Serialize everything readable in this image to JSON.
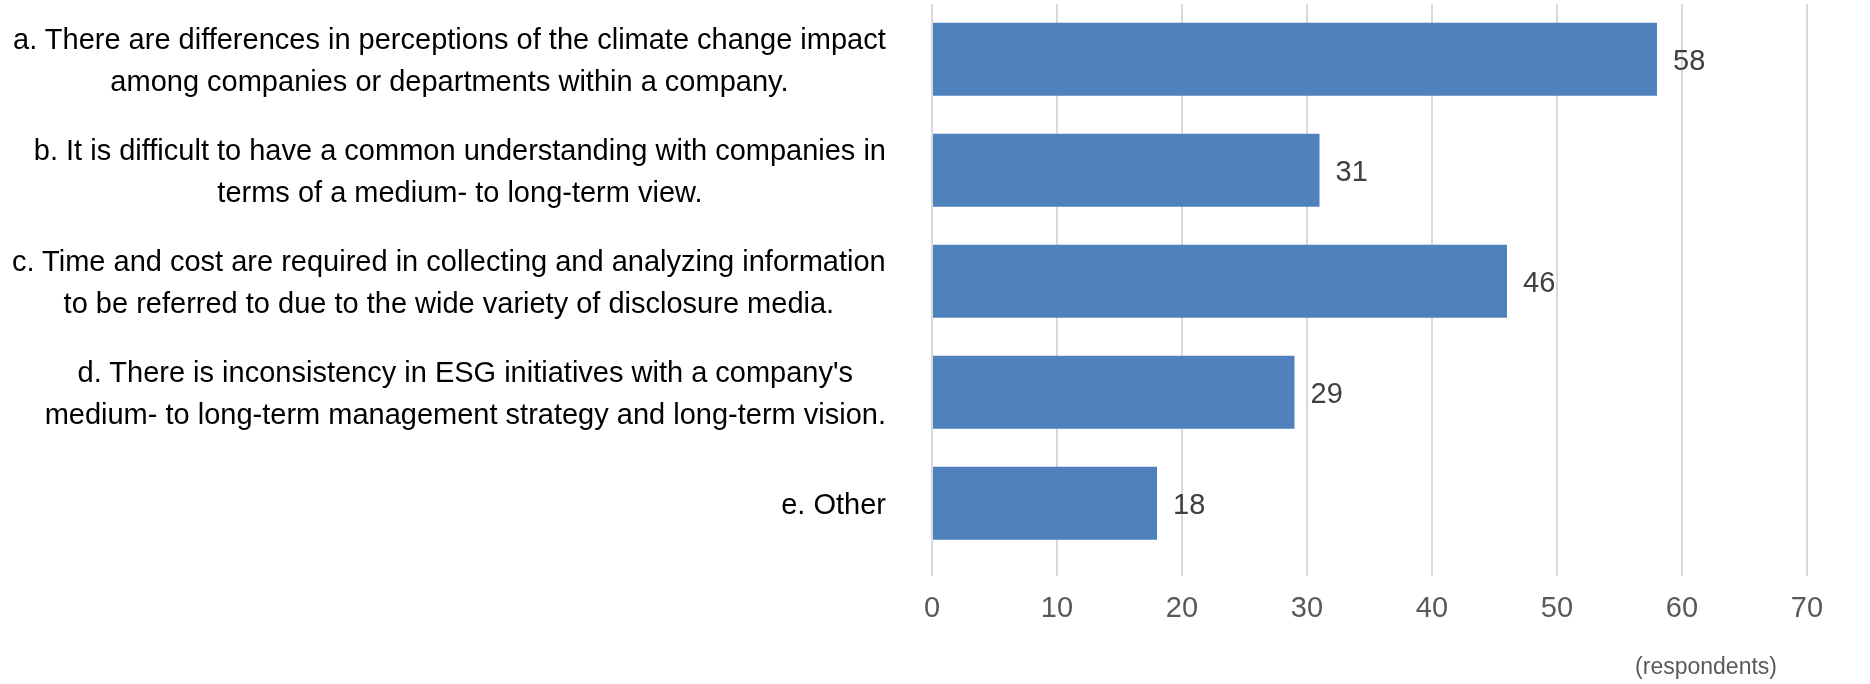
{
  "chart_data": {
    "type": "bar",
    "orientation": "horizontal",
    "categories": [
      "a. There are differences in perceptions of the climate change impact among companies or departments within a company.",
      "b. It is difficult to have a common understanding with companies in terms of a medium- to long-term view.",
      "c. Time and cost are required in collecting and analyzing information to be referred to due to the wide variety of disclosure media.",
      "d. There is inconsistency in ESG initiatives with a company's medium- to long-term management strategy and long-term vision.",
      "e. Other"
    ],
    "values": [
      58,
      31,
      46,
      29,
      18
    ],
    "color": "#4f81bd",
    "xlim": [
      0,
      70
    ],
    "xticks": [
      0,
      10,
      20,
      30,
      40,
      50,
      60,
      70
    ],
    "xlabel": "(respondents)",
    "grid": "x",
    "data_labels": true
  }
}
